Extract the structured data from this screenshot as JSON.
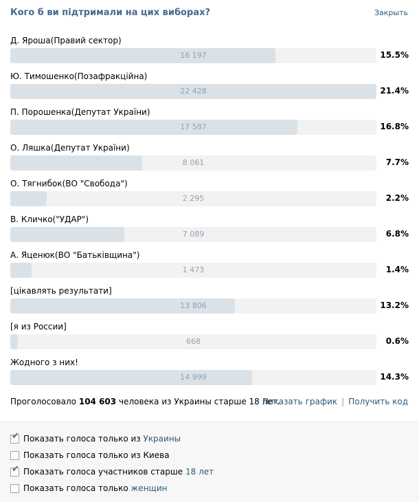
{
  "header": {
    "title": "Кого б ви підтримали на цих виборах?",
    "close_label": "Закрыть"
  },
  "options": [
    {
      "label": "Д. Яроша(Правий сектор)",
      "count": "16 197",
      "percent": "15.5%",
      "fraction": 0.725
    },
    {
      "label": "Ю. Тимошенко(Позафракційна)",
      "count": "22 428",
      "percent": "21.4%",
      "fraction": 1.0
    },
    {
      "label": "П. Порошенка(Депутат України)",
      "count": "17 587",
      "percent": "16.8%",
      "fraction": 0.785
    },
    {
      "label": "О. Ляшка(Депутат України)",
      "count": "8 061",
      "percent": "7.7%",
      "fraction": 0.36
    },
    {
      "label": "О. Тягнибок(ВО \"Свобода\")",
      "count": "2 295",
      "percent": "2.2%",
      "fraction": 0.1
    },
    {
      "label": "В. Кличко(\"УДАР\")",
      "count": "7 089",
      "percent": "6.8%",
      "fraction": 0.312
    },
    {
      "label": "А. Яценюк(ВО \"Батьківщина\")",
      "count": "1 473",
      "percent": "1.4%",
      "fraction": 0.058
    },
    {
      "label": "[цікавлять результати]",
      "count": "13 806",
      "percent": "13.2%",
      "fraction": 0.613
    },
    {
      "label": "[я из России]",
      "count": "668",
      "percent": "0.6%",
      "fraction": 0.02
    },
    {
      "label": "Жодного з них!",
      "count": "14 999",
      "percent": "14.3%",
      "fraction": 0.66
    }
  ],
  "summary": {
    "prefix": "Проголосовало",
    "total": "104 603",
    "suffix": "человека из Украины старше 18 лет.",
    "show_chart": "Показать график",
    "separator": "|",
    "get_code": "Получить код"
  },
  "filters": [
    {
      "checked": true,
      "text": "Показать голоса только из",
      "link": "Украины"
    },
    {
      "checked": false,
      "text": "Показать голоса только из Киева",
      "link": ""
    },
    {
      "checked": true,
      "text": "Показать голоса участников старше",
      "link": "18 лет"
    },
    {
      "checked": false,
      "text": "Показать голоса только",
      "link": "женщин"
    }
  ],
  "colors": {
    "title": "#45688e",
    "link": "#2b587a",
    "bar_fill": "#dae2e8",
    "bar_track": "#f2f2f2",
    "count_text": "#8fa1b3"
  }
}
